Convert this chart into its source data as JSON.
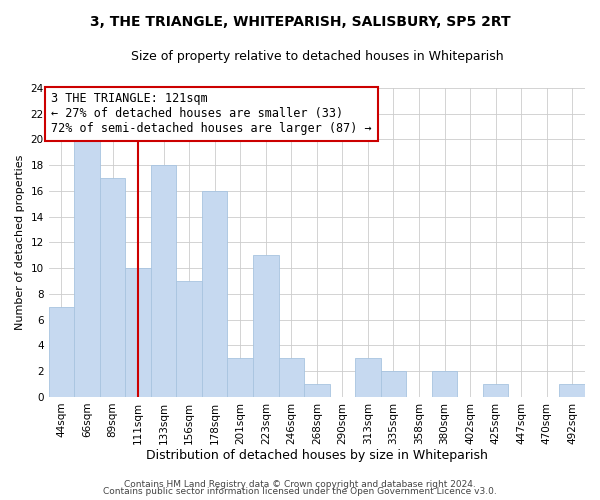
{
  "title": "3, THE TRIANGLE, WHITEPARISH, SALISBURY, SP5 2RT",
  "subtitle": "Size of property relative to detached houses in Whiteparish",
  "xlabel": "Distribution of detached houses by size in Whiteparish",
  "ylabel": "Number of detached properties",
  "bar_labels": [
    "44sqm",
    "66sqm",
    "89sqm",
    "111sqm",
    "133sqm",
    "156sqm",
    "178sqm",
    "201sqm",
    "223sqm",
    "246sqm",
    "268sqm",
    "290sqm",
    "313sqm",
    "335sqm",
    "358sqm",
    "380sqm",
    "402sqm",
    "425sqm",
    "447sqm",
    "470sqm",
    "492sqm"
  ],
  "bar_values": [
    7,
    20,
    17,
    10,
    18,
    9,
    16,
    3,
    11,
    3,
    1,
    0,
    3,
    2,
    0,
    2,
    0,
    1,
    0,
    0,
    1
  ],
  "bar_color": "#c6d9f0",
  "bar_edge_color": "#a8c4e0",
  "vline_x_index": 3,
  "vline_color": "#cc0000",
  "annotation_text": "3 THE TRIANGLE: 121sqm\n← 27% of detached houses are smaller (33)\n72% of semi-detached houses are larger (87) →",
  "annotation_box_color": "#ffffff",
  "annotation_box_edge": "#cc0000",
  "ylim": [
    0,
    24
  ],
  "yticks": [
    0,
    2,
    4,
    6,
    8,
    10,
    12,
    14,
    16,
    18,
    20,
    22,
    24
  ],
  "footer1": "Contains HM Land Registry data © Crown copyright and database right 2024.",
  "footer2": "Contains public sector information licensed under the Open Government Licence v3.0.",
  "background_color": "#ffffff",
  "grid_color": "#cccccc",
  "title_fontsize": 10,
  "subtitle_fontsize": 9,
  "xlabel_fontsize": 9,
  "ylabel_fontsize": 8,
  "tick_fontsize": 7.5,
  "annotation_fontsize": 8.5,
  "footer_fontsize": 6.5
}
